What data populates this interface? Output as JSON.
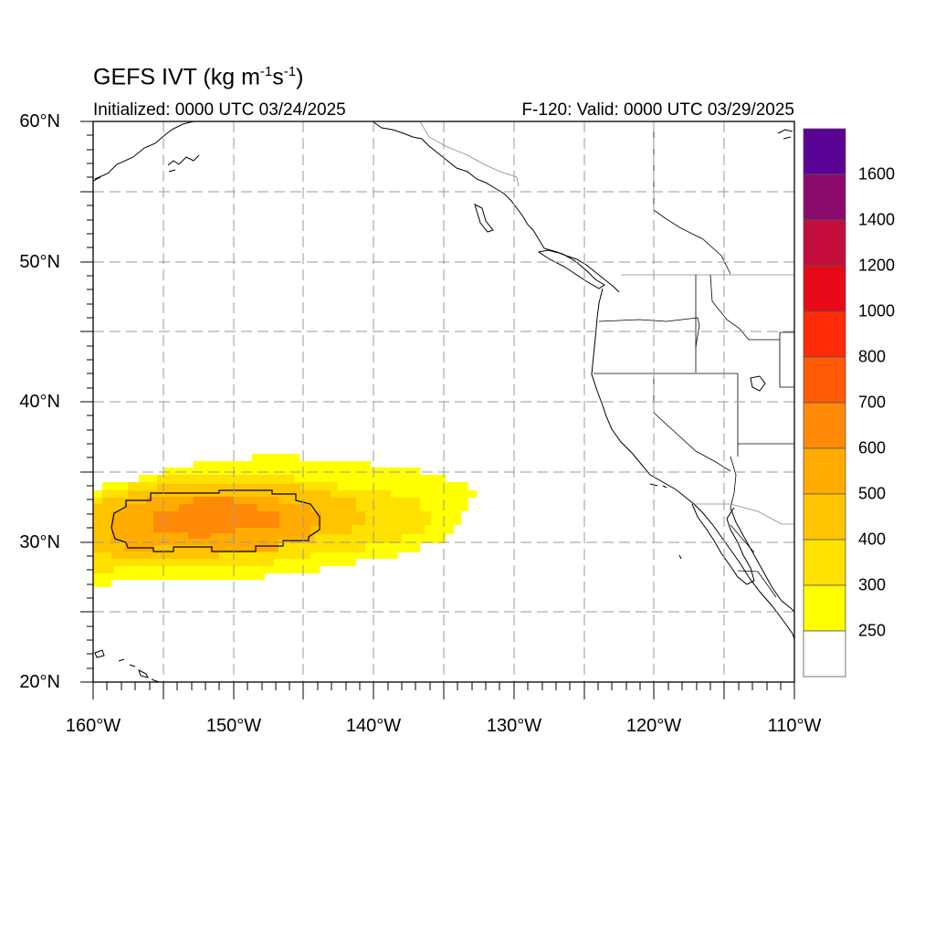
{
  "header": {
    "title_main": "GEFS IVT (kg m",
    "title_exp1": "-1",
    "title_mid": "s",
    "title_exp2": "-1",
    "title_end": ")",
    "initialized": "Initialized: 0000 UTC 03/24/2025",
    "valid": "F-120: Valid: 0000 UTC 03/29/2025"
  },
  "axes": {
    "lat_labels": [
      "60°N",
      "50°N",
      "40°N",
      "30°N",
      "20°N"
    ],
    "lon_labels": [
      "160°W",
      "150°W",
      "140°W",
      "130°W",
      "120°W",
      "110°W"
    ]
  },
  "colorbar": {
    "labels": [
      "1600",
      "1400",
      "1200",
      "1000",
      "800",
      "700",
      "600",
      "500",
      "400",
      "300",
      "250"
    ],
    "colors": [
      "#5a0496",
      "#8a0a6e",
      "#c20c3c",
      "#e80a18",
      "#ff2a08",
      "#ff5a05",
      "#ff8a08",
      "#ffab00",
      "#ffc400",
      "#ffe100",
      "#ffff00",
      "#ffffff"
    ]
  },
  "ivt_colors": {
    "lt300": "#ffff00",
    "c300": "#ffe100",
    "c400": "#ffc400",
    "c500": "#ffab00",
    "c600": "#ff8a08"
  }
}
